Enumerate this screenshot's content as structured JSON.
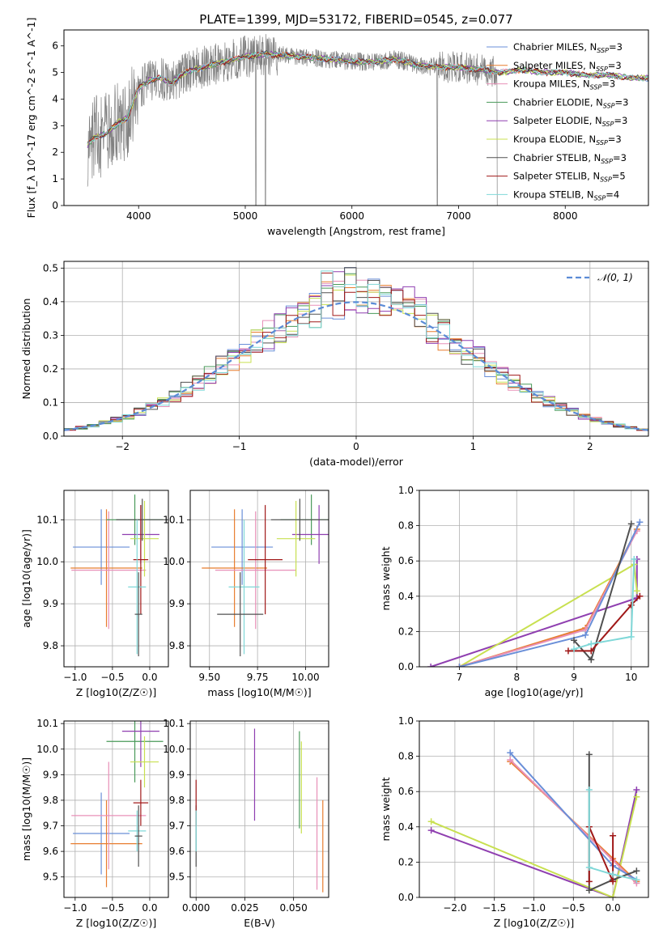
{
  "title": "PLATE=1399, MJD=53172, FIBERID=0545, z=0.077",
  "legend_items": [
    {
      "label": "Chabrier MILES, N",
      "sub": "SSP",
      "suffix": "=3",
      "color": "#6a8fd8"
    },
    {
      "label": "Salpeter MILES, N",
      "sub": "SSP",
      "suffix": "=3",
      "color": "#e87d2f"
    },
    {
      "label": "Kroupa MILES, N",
      "sub": "SSP",
      "suffix": "=3",
      "color": "#e890b8"
    },
    {
      "label": "Chabrier ELODIE, N",
      "sub": "SSP",
      "suffix": "=3",
      "color": "#4a9a5a"
    },
    {
      "label": "Salpeter ELODIE, N",
      "sub": "SSP",
      "suffix": "=3",
      "color": "#8f3fb0"
    },
    {
      "label": "Kroupa ELODIE, N",
      "sub": "SSP",
      "suffix": "=3",
      "color": "#c8e050"
    },
    {
      "label": "Chabrier STELIB, N",
      "sub": "SSP",
      "suffix": "=3",
      "color": "#505050"
    },
    {
      "label": "Salpeter STELIB, N",
      "sub": "SSP",
      "suffix": "=5",
      "color": "#a01818"
    },
    {
      "label": "Kroupa STELIB, N",
      "sub": "SSP",
      "suffix": "=4",
      "color": "#80d8d8"
    }
  ],
  "chart_data": [
    {
      "id": "spectrum",
      "type": "line",
      "xlabel": "wavelength [Angstrom, rest frame]",
      "ylabel": "Flux [f_λ 10^-17 erg cm^-2 s^-1 A^-1]",
      "xlim": [
        3300,
        8780
      ],
      "ylim": [
        0,
        6.6
      ],
      "xticks": [
        4000,
        5000,
        6000,
        7000,
        8000
      ],
      "yticks": [
        0,
        1,
        2,
        3,
        4,
        5,
        6
      ],
      "model_continuum": {
        "x": [
          3500,
          3600,
          3700,
          3800,
          3900,
          3950,
          4000,
          4100,
          4200,
          4300,
          4400,
          4500,
          4700,
          4900,
          5000,
          5200,
          5500,
          5800,
          6000,
          6200,
          6400,
          6600,
          6800,
          7000,
          7200,
          7400,
          7600,
          7800,
          8000,
          8200,
          8400,
          8600,
          8780
        ],
        "y": [
          2.2,
          2.6,
          2.7,
          3.1,
          3.3,
          3.9,
          4.4,
          4.7,
          4.8,
          4.6,
          4.9,
          5.1,
          5.3,
          5.5,
          5.6,
          5.7,
          5.6,
          5.5,
          5.4,
          5.4,
          5.5,
          5.3,
          5.2,
          5.2,
          5.1,
          5.0,
          5.1,
          5.0,
          5.0,
          4.9,
          4.9,
          4.8,
          4.8
        ]
      },
      "data_coverage": [
        3520,
        7400
      ]
    },
    {
      "id": "residual-histogram",
      "type": "line",
      "xlabel": "(data-model)/error",
      "ylabel": "Normed distribution",
      "xlim": [
        -2.5,
        2.5
      ],
      "ylim": [
        0,
        0.52
      ],
      "xticks": [
        -2,
        -1,
        0,
        1,
        2
      ],
      "yticks": [
        0,
        0.1,
        0.2,
        0.3,
        0.4,
        0.5
      ],
      "normal_label": "𝒩(0, 1)",
      "normal_color": "#5b8bd6",
      "bin_width": 0.1
    },
    {
      "id": "age-vs-Z",
      "type": "scatter",
      "xlabel": "Z [log10(Z/Z☉)]",
      "ylabel": "age  [log10(age/yr)]",
      "xlim": [
        -1.15,
        0.25
      ],
      "ylim": [
        9.75,
        10.17
      ],
      "xticks": [
        -1.0,
        -0.5,
        0.0
      ],
      "yticks": [
        9.8,
        9.9,
        10.0,
        10.1
      ],
      "points": [
        {
          "x": -0.65,
          "xerr": 0.38,
          "y": 10.035,
          "yerr": 0.09,
          "color": "#6a8fd8"
        },
        {
          "x": -0.58,
          "xerr": 0.48,
          "y": 9.985,
          "yerr": 0.14,
          "color": "#e87d2f"
        },
        {
          "x": -0.55,
          "xerr": 0.5,
          "y": 9.98,
          "yerr": 0.14,
          "color": "#e890b8"
        },
        {
          "x": -0.2,
          "xerr": 0.38,
          "y": 10.1,
          "yerr": 0.06,
          "color": "#4a9a5a"
        },
        {
          "x": -0.12,
          "xerr": 0.25,
          "y": 10.065,
          "yerr": 0.07,
          "color": "#8f3fb0"
        },
        {
          "x": -0.07,
          "xerr": 0.19,
          "y": 10.055,
          "yerr": 0.09,
          "color": "#c8e050"
        },
        {
          "x": -0.1,
          "xerr": 0.35,
          "y": 10.1,
          "yerr": 0.05,
          "color": "#505050"
        },
        {
          "x": -0.12,
          "xerr": 0.1,
          "y": 10.005,
          "yerr": 0.13,
          "color": "#a01818"
        },
        {
          "x": -0.17,
          "xerr": 0.12,
          "y": 9.94,
          "yerr": 0.16,
          "color": "#80d8d8"
        },
        {
          "x": -0.15,
          "xerr": 0.05,
          "y": 9.875,
          "yerr": 0.1,
          "color": "#505050"
        }
      ]
    },
    {
      "id": "age-vs-mass",
      "type": "scatter",
      "xlabel": "mass [log10(M/M☉)]",
      "ylabel": "",
      "xlim": [
        9.4,
        10.12
      ],
      "ylim": [
        9.75,
        10.17
      ],
      "xticks": [
        9.5,
        9.75,
        10.0
      ],
      "yticks": [
        9.8,
        9.9,
        10.0,
        10.1
      ],
      "points": [
        {
          "x": 9.67,
          "xerr": 0.16,
          "y": 10.035,
          "yerr": 0.09,
          "color": "#6a8fd8"
        },
        {
          "x": 9.63,
          "xerr": 0.17,
          "y": 9.985,
          "yerr": 0.14,
          "color": "#e87d2f"
        },
        {
          "x": 9.74,
          "xerr": 0.21,
          "y": 9.98,
          "yerr": 0.14,
          "color": "#e890b8"
        },
        {
          "x": 10.03,
          "xerr": 0.16,
          "y": 10.1,
          "yerr": 0.06,
          "color": "#4a9a5a"
        },
        {
          "x": 10.07,
          "xerr": 0.14,
          "y": 10.065,
          "yerr": 0.07,
          "color": "#8f3fb0"
        },
        {
          "x": 9.95,
          "xerr": 0.1,
          "y": 10.055,
          "yerr": 0.09,
          "color": "#c8e050"
        },
        {
          "x": 9.97,
          "xerr": 0.15,
          "y": 10.1,
          "yerr": 0.05,
          "color": "#505050"
        },
        {
          "x": 9.79,
          "xerr": 0.09,
          "y": 10.005,
          "yerr": 0.13,
          "color": "#a01818"
        },
        {
          "x": 9.68,
          "xerr": 0.08,
          "y": 9.94,
          "yerr": 0.16,
          "color": "#80d8d8"
        },
        {
          "x": 9.66,
          "xerr": 0.12,
          "y": 9.875,
          "yerr": 0.1,
          "color": "#505050"
        }
      ]
    },
    {
      "id": "mass-weight-vs-age",
      "type": "line",
      "xlabel": "age  [log10(age/yr)]",
      "ylabel": "mass weight",
      "xlim": [
        6.3,
        10.3
      ],
      "ylim": [
        0,
        1.0
      ],
      "xticks": [
        7,
        8,
        9,
        10
      ],
      "yticks": [
        0.0,
        0.2,
        0.4,
        0.6,
        0.8,
        1.0
      ],
      "series": [
        {
          "color": "#8f3fb0",
          "x": [
            6.5,
            10.1,
            10.1
          ],
          "y": [
            0.0,
            0.39,
            0.61
          ]
        },
        {
          "color": "#c8e050",
          "x": [
            7.0,
            10.05,
            10.1
          ],
          "y": [
            0.0,
            0.58,
            0.43
          ]
        },
        {
          "color": "#e87d2f",
          "x": [
            7.0,
            9.2,
            10.1
          ],
          "y": [
            0.0,
            0.22,
            0.78
          ]
        },
        {
          "color": "#e890b8",
          "x": [
            7.0,
            9.2,
            10.1
          ],
          "y": [
            0.0,
            0.21,
            0.77
          ]
        },
        {
          "color": "#6a8fd8",
          "x": [
            7.0,
            9.2,
            10.15
          ],
          "y": [
            0.0,
            0.18,
            0.82
          ]
        },
        {
          "color": "#505050",
          "x": [
            9.0,
            9.3,
            10.0
          ],
          "y": [
            0.15,
            0.04,
            0.81
          ]
        },
        {
          "color": "#a01818",
          "x": [
            8.9,
            9.3,
            10.0,
            10.15
          ],
          "y": [
            0.09,
            0.09,
            0.35,
            0.4
          ]
        },
        {
          "color": "#80d8d8",
          "x": [
            9.0,
            9.3,
            10.0,
            10.05
          ],
          "y": [
            0.1,
            0.13,
            0.17,
            0.61
          ]
        }
      ]
    },
    {
      "id": "mass-vs-Z",
      "type": "scatter",
      "xlabel": "Z [log10(Z/Z☉)]",
      "ylabel": "mass [log10(M/M☉)]",
      "xlim": [
        -1.15,
        0.25
      ],
      "ylim": [
        9.42,
        10.11
      ],
      "xticks": [
        -1.0,
        -0.5,
        0.0
      ],
      "yticks": [
        9.5,
        9.6,
        9.7,
        9.8,
        9.9,
        10.0,
        10.1
      ],
      "points": [
        {
          "x": -0.65,
          "xerr": 0.38,
          "y": 9.67,
          "yerr": 0.16,
          "color": "#6a8fd8"
        },
        {
          "x": -0.58,
          "xerr": 0.48,
          "y": 9.63,
          "yerr": 0.17,
          "color": "#e87d2f"
        },
        {
          "x": -0.55,
          "xerr": 0.5,
          "y": 9.74,
          "yerr": 0.21,
          "color": "#e890b8"
        },
        {
          "x": -0.2,
          "xerr": 0.38,
          "y": 10.03,
          "yerr": 0.16,
          "color": "#4a9a5a"
        },
        {
          "x": -0.12,
          "xerr": 0.25,
          "y": 10.07,
          "yerr": 0.14,
          "color": "#8f3fb0"
        },
        {
          "x": -0.07,
          "xerr": 0.19,
          "y": 9.95,
          "yerr": 0.1,
          "color": "#c8e050"
        },
        {
          "x": -0.12,
          "xerr": 0.1,
          "y": 9.79,
          "yerr": 0.09,
          "color": "#a01818"
        },
        {
          "x": -0.17,
          "xerr": 0.12,
          "y": 9.68,
          "yerr": 0.08,
          "color": "#80d8d8"
        },
        {
          "x": -0.15,
          "xerr": 0.05,
          "y": 9.66,
          "yerr": 0.12,
          "color": "#505050"
        }
      ]
    },
    {
      "id": "mass-vs-EBV",
      "type": "scatter",
      "xlabel": "E(B-V)",
      "ylabel": "",
      "xlim": [
        -0.003,
        0.068
      ],
      "ylim": [
        9.42,
        10.11
      ],
      "xticks": [
        0.0,
        0.025,
        0.05
      ],
      "yticks": [
        9.5,
        9.6,
        9.7,
        9.8,
        9.9,
        10.0,
        10.1
      ],
      "points": [
        {
          "x": 0.0,
          "y": 9.66,
          "yerr": 0.12,
          "color": "#505050"
        },
        {
          "x": 0.0,
          "y": 9.79,
          "yerr": 0.09,
          "color": "#a01818"
        },
        {
          "x": 0.0,
          "y": 9.68,
          "yerr": 0.08,
          "color": "#80d8d8"
        },
        {
          "x": 0.03,
          "y": 9.9,
          "yerr": 0.18,
          "color": "#8f3fb0"
        },
        {
          "x": 0.053,
          "y": 9.88,
          "yerr": 0.19,
          "color": "#4a9a5a"
        },
        {
          "x": 0.054,
          "y": 9.85,
          "yerr": 0.18,
          "color": "#c8e050"
        },
        {
          "x": 0.062,
          "y": 9.67,
          "yerr": 0.22,
          "color": "#e890b8"
        },
        {
          "x": 0.065,
          "y": 9.62,
          "yerr": 0.18,
          "color": "#e87d2f"
        }
      ]
    },
    {
      "id": "mass-weight-vs-Z",
      "type": "line",
      "xlabel": "Z [log10(Z/Z☉)]",
      "ylabel": "mass weight",
      "xlim": [
        -2.45,
        0.45
      ],
      "ylim": [
        0,
        1.0
      ],
      "xticks": [
        -2.0,
        -1.5,
        -1.0,
        -0.5,
        0.0
      ],
      "yticks": [
        0.0,
        0.2,
        0.4,
        0.6,
        0.8,
        1.0
      ],
      "series": [
        {
          "color": "#8f3fb0",
          "x": [
            -2.3,
            0.0,
            0.3
          ],
          "y": [
            0.38,
            0.0,
            0.61
          ]
        },
        {
          "color": "#c8e050",
          "x": [
            -2.3,
            0.0,
            0.3
          ],
          "y": [
            0.43,
            0.0,
            0.57
          ]
        },
        {
          "color": "#e87d2f",
          "x": [
            -1.3,
            0.0,
            0.3
          ],
          "y": [
            0.77,
            0.22,
            0.09
          ]
        },
        {
          "color": "#e890b8",
          "x": [
            -1.3,
            0.0,
            0.3
          ],
          "y": [
            0.78,
            0.21,
            0.08
          ]
        },
        {
          "color": "#6a8fd8",
          "x": [
            -1.3,
            0.0,
            0.3
          ],
          "y": [
            0.82,
            0.18,
            0.1
          ]
        },
        {
          "color": "#505050",
          "x": [
            -0.3,
            -0.3,
            0.0,
            0.3
          ],
          "y": [
            0.81,
            0.04,
            0.1,
            0.15
          ]
        },
        {
          "color": "#a01818",
          "x": [
            -0.3,
            -0.3,
            0.0,
            0.0
          ],
          "y": [
            0.09,
            0.4,
            0.09,
            0.35
          ]
        },
        {
          "color": "#80d8d8",
          "x": [
            -0.3,
            -0.3,
            0.0,
            0.3
          ],
          "y": [
            0.61,
            0.17,
            0.13,
            0.1
          ]
        }
      ]
    }
  ]
}
